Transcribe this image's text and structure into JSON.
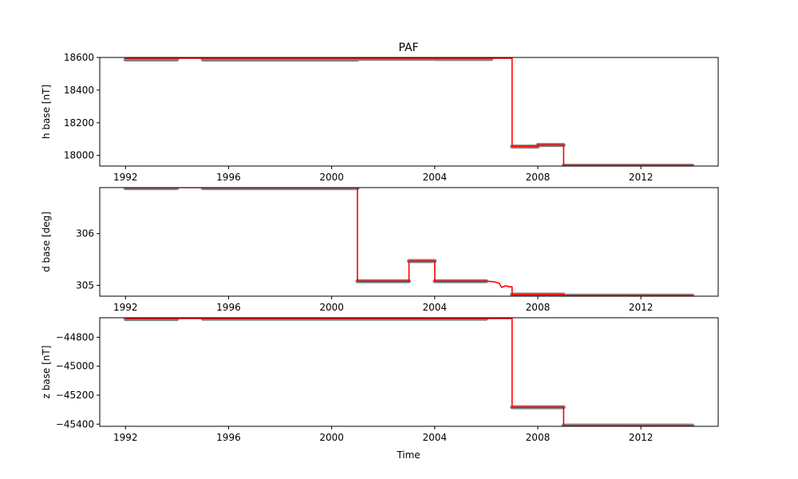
{
  "title": "PAF",
  "xlabel": "Time",
  "colors": {
    "points": "#808080",
    "line": "#ff0000",
    "axis": "#000000"
  },
  "x_ticks": [
    "1992",
    "1996",
    "2000",
    "2004",
    "2008",
    "2012"
  ],
  "chart_data": [
    {
      "type": "line",
      "title": "PAF",
      "xlabel": "",
      "ylabel": "h base [nT]",
      "xlim": [
        1991.0,
        2015.0
      ],
      "ylim": [
        17935,
        18600
      ],
      "y_ticks": [
        "18600",
        "18400",
        "18200",
        "18000"
      ],
      "y_tick_values": [
        18600,
        18400,
        18200,
        18000
      ],
      "series": [
        {
          "style": "points",
          "segments": [
            {
              "x": [
                1992.0,
                1994.0
              ],
              "y": 18588
            },
            {
              "x": [
                1995.0,
                2001.0
              ],
              "y": 18587
            },
            {
              "x": [
                2001.0,
                2004.0
              ],
              "y": 18592
            },
            {
              "x": [
                2004.0,
                2006.2
              ],
              "y": 18591
            },
            {
              "x": [
                2007.0,
                2008.0
              ],
              "y": 18054
            },
            {
              "x": [
                2008.0,
                2009.0
              ],
              "y": 18064
            },
            {
              "x": [
                2009.0,
                2014.0
              ],
              "y": 17937
            }
          ]
        },
        {
          "style": "line",
          "x": [
            1992.0,
            2007.0,
            2007.0,
            2008.0,
            2008.0,
            2009.0,
            2009.0,
            2014.0
          ],
          "y": [
            18595,
            18595,
            18056,
            18056,
            18064,
            18064,
            17938,
            17938
          ]
        }
      ]
    },
    {
      "type": "line",
      "title": "",
      "xlabel": "",
      "ylabel": "d base [deg]",
      "xlim": [
        1991.0,
        2015.0
      ],
      "ylim": [
        304.79,
        306.89
      ],
      "y_ticks": [
        "306",
        "305"
      ],
      "y_tick_values": [
        306,
        305
      ],
      "series": [
        {
          "style": "points",
          "segments": [
            {
              "x": [
                1992.0,
                1994.0
              ],
              "y": 306.88
            },
            {
              "x": [
                1995.0,
                2001.0
              ],
              "y": 306.88
            },
            {
              "x": [
                2001.0,
                2003.0
              ],
              "y": 305.08
            },
            {
              "x": [
                2003.0,
                2004.0
              ],
              "y": 305.47
            },
            {
              "x": [
                2004.0,
                2006.0
              ],
              "y": 305.08
            },
            {
              "x": [
                2007.0,
                2009.0
              ],
              "y": 304.82
            },
            {
              "x": [
                2009.0,
                2014.0
              ],
              "y": 304.8
            }
          ]
        },
        {
          "style": "line",
          "x": [
            1992.0,
            2001.0,
            2001.0,
            2003.0,
            2003.0,
            2004.0,
            2004.0,
            2006.0,
            2006.3,
            2006.5,
            2006.6,
            2006.75,
            2006.9,
            2007.0,
            2007.0,
            2009.0,
            2009.0,
            2014.0
          ],
          "y": [
            306.89,
            306.89,
            305.08,
            305.08,
            305.47,
            305.47,
            305.08,
            305.08,
            305.07,
            305.04,
            304.96,
            304.99,
            304.97,
            304.97,
            304.82,
            304.82,
            304.8,
            304.8
          ]
        }
      ]
    },
    {
      "type": "line",
      "title": "",
      "xlabel": "Time",
      "ylabel": "z base [nT]",
      "xlim": [
        1991.0,
        2015.0
      ],
      "ylim": [
        -45415,
        -44665
      ],
      "y_ticks": [
        "−44800",
        "−45000",
        "−45200",
        "−45400"
      ],
      "y_tick_values": [
        -44800,
        -45000,
        -45200,
        -45400
      ],
      "series": [
        {
          "style": "points",
          "segments": [
            {
              "x": [
                1992.0,
                1994.0
              ],
              "y": -44674
            },
            {
              "x": [
                1995.0,
                2006.0
              ],
              "y": -44672
            },
            {
              "x": [
                2007.0,
                2009.0
              ],
              "y": -45283
            },
            {
              "x": [
                2009.0,
                2014.0
              ],
              "y": -45410
            }
          ]
        },
        {
          "style": "line",
          "x": [
            1992.0,
            2007.0,
            2007.0,
            2009.0,
            2009.0,
            2014.0
          ],
          "y": [
            -44670,
            -44670,
            -45283,
            -45283,
            -45412,
            -45412
          ]
        }
      ]
    }
  ]
}
